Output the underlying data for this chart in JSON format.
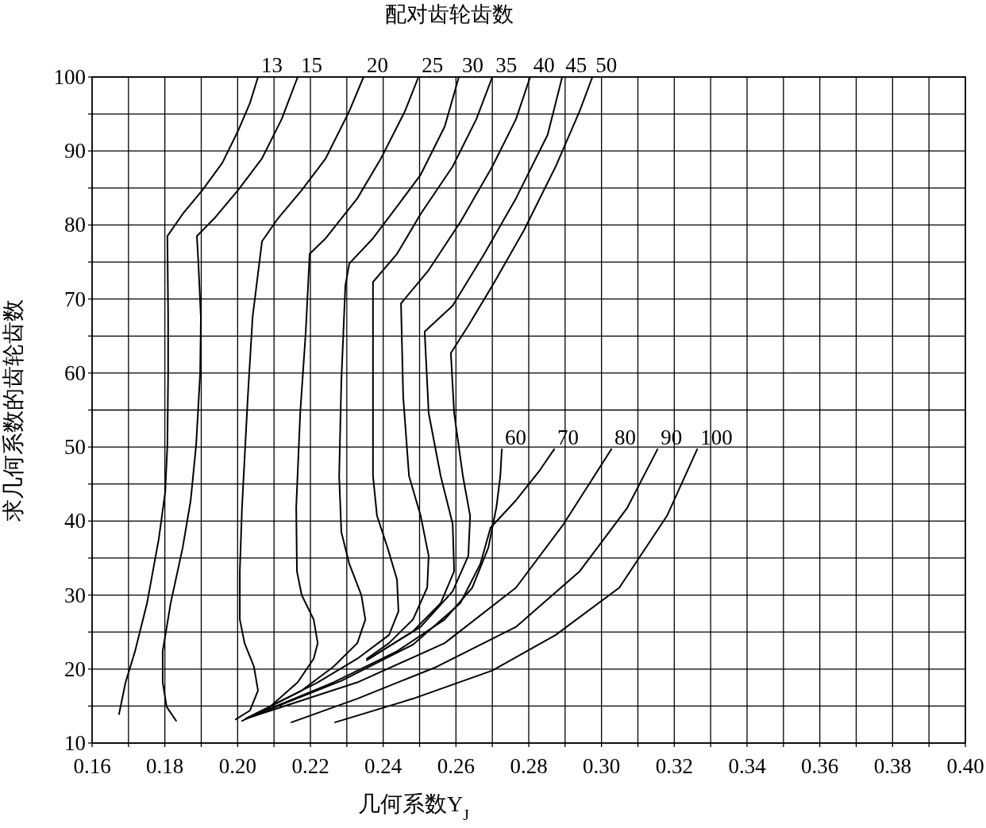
{
  "chart_data": {
    "type": "line",
    "title": "配对齿轮齿数",
    "xlabel": "几何系数Y$_{J}$",
    "ylabel": "求几何系数的齿轮齿数",
    "xlim": [
      0.16,
      0.4
    ],
    "ylim": [
      10,
      100
    ],
    "grid": true,
    "xticks": [
      {
        "value": 0.16,
        "label": "0.16"
      },
      {
        "value": 0.17,
        "label": null
      },
      {
        "value": 0.18,
        "label": "0.18"
      },
      {
        "value": 0.19,
        "label": null
      },
      {
        "value": 0.2,
        "label": "0.20"
      },
      {
        "value": 0.21,
        "label": null
      },
      {
        "value": 0.22,
        "label": "0.22"
      },
      {
        "value": 0.23,
        "label": null
      },
      {
        "value": 0.24,
        "label": "0.24"
      },
      {
        "value": 0.25,
        "label": null
      },
      {
        "value": 0.26,
        "label": "0.26"
      },
      {
        "value": 0.27,
        "label": null
      },
      {
        "value": 0.28,
        "label": "0.28"
      },
      {
        "value": 0.29,
        "label": null
      },
      {
        "value": 0.3,
        "label": "0.30"
      },
      {
        "value": 0.31,
        "label": null
      },
      {
        "value": 0.32,
        "label": "0.32"
      },
      {
        "value": 0.33,
        "label": null
      },
      {
        "value": 0.34,
        "label": "0.34"
      },
      {
        "value": 0.35,
        "label": null
      },
      {
        "value": 0.36,
        "label": "0.36"
      },
      {
        "value": 0.37,
        "label": null
      },
      {
        "value": 0.38,
        "label": "0.38"
      },
      {
        "value": 0.39,
        "label": null
      },
      {
        "value": 0.4,
        "label": "0.40"
      }
    ],
    "yticks": [
      10,
      {
        "value": 15,
        "label": null
      },
      20,
      {
        "value": 25,
        "label": null
      },
      30,
      {
        "value": 35,
        "label": null
      },
      40,
      {
        "value": 45,
        "label": null
      },
      50,
      {
        "value": 55,
        "label": null
      },
      60,
      {
        "value": 65,
        "label": null
      },
      70,
      {
        "value": 75,
        "label": null
      },
      80,
      {
        "value": 85,
        "label": null
      },
      90,
      {
        "value": 95,
        "label": null
      },
      100
    ],
    "series": [
      {
        "name": "13",
        "color": "#000000",
        "x": [
          0.1674,
          0.1692,
          0.1718,
          0.1751,
          0.1783,
          0.1801,
          0.1807,
          0.1809,
          0.1809,
          0.1807,
          0.1849,
          0.1903,
          0.1958,
          0.2001,
          0.2034,
          0.2056
        ],
        "values": [
          13.9,
          18.2,
          22.4,
          28.9,
          37.5,
          43.9,
          50.3,
          60.0,
          67.5,
          78.5,
          81.5,
          84.7,
          88.4,
          92.7,
          96.5,
          100
        ]
      },
      {
        "name": "15",
        "color": "#000000",
        "x": [
          0.1831,
          0.1805,
          0.1794,
          0.1794,
          0.1816,
          0.1849,
          0.1871,
          0.1886,
          0.1897,
          0.1899,
          0.1892,
          0.1888,
          0.1936,
          0.2001,
          0.2067,
          0.2121,
          0.2165
        ],
        "values": [
          13.0,
          14.9,
          18.2,
          22.4,
          28.9,
          36.4,
          42.8,
          50.3,
          60.0,
          67.5,
          75.0,
          78.5,
          80.9,
          84.7,
          89.0,
          94.3,
          100
        ]
      },
      {
        "name": "20",
        "color": "#000000",
        "x": [
          0.1995,
          0.2034,
          0.2056,
          0.2045,
          0.2019,
          0.2006,
          0.2006,
          0.2012,
          0.2028,
          0.2041,
          0.2067,
          0.2111,
          0.2176,
          0.2242,
          0.2307,
          0.2346
        ],
        "values": [
          13.2,
          14.4,
          17.1,
          20.3,
          23.5,
          26.7,
          33.2,
          41.8,
          56.8,
          67.5,
          77.8,
          80.9,
          84.7,
          89.0,
          95.4,
          100
        ]
      },
      {
        "name": "25",
        "color": "#000000",
        "x": [
          0.2012,
          0.2089,
          0.2165,
          0.2209,
          0.222,
          0.2209,
          0.2176,
          0.2163,
          0.2161,
          0.2172,
          0.2187,
          0.2198,
          0.2242,
          0.2329,
          0.2394,
          0.246,
          0.2497
        ],
        "values": [
          13.0,
          14.9,
          18.2,
          21.4,
          23.5,
          26.7,
          30.0,
          33.2,
          41.8,
          54.6,
          65.4,
          76.1,
          78.2,
          83.6,
          89.0,
          95.4,
          100
        ]
      },
      {
        "name": "30",
        "color": "#000000",
        "x": [
          0.2023,
          0.2176,
          0.2263,
          0.2329,
          0.2351,
          0.234,
          0.2307,
          0.2285,
          0.2279,
          0.2285,
          0.2296,
          0.2307,
          0.2372,
          0.2438,
          0.2503,
          0.2569,
          0.2608
        ],
        "values": [
          13.3,
          17.1,
          20.3,
          23.5,
          26.7,
          30.0,
          34.2,
          38.5,
          46.1,
          58.9,
          71.8,
          74.8,
          78.2,
          82.5,
          86.8,
          93.3,
          100
        ]
      },
      {
        "name": "35",
        "color": "#000000",
        "x": [
          0.2023,
          0.222,
          0.2329,
          0.2416,
          0.2442,
          0.2438,
          0.2412,
          0.2383,
          0.2372,
          0.2372,
          0.2372,
          0.2438,
          0.2503,
          0.2591,
          0.2656,
          0.27
        ],
        "values": [
          13.3,
          18.2,
          21.4,
          24.6,
          27.8,
          32.1,
          36.4,
          40.7,
          46.1,
          62.1,
          72.3,
          76.1,
          81.5,
          87.9,
          94.3,
          100
        ]
      },
      {
        "name": "40",
        "color": "#000000",
        "x": [
          0.2355,
          0.2416,
          0.2482,
          0.2521,
          0.2525,
          0.2503,
          0.2471,
          0.2455,
          0.2449,
          0.2525,
          0.2612,
          0.27,
          0.2765,
          0.2804
        ],
        "values": [
          21.4,
          23.5,
          26.7,
          31.0,
          35.3,
          40.7,
          46.1,
          56.8,
          69.4,
          73.9,
          80.4,
          87.9,
          94.3,
          100
        ]
      },
      {
        "name": "45",
        "color": "#000000",
        "x": [
          0.2355,
          0.2482,
          0.2558,
          0.2595,
          0.2591,
          0.2558,
          0.2525,
          0.2514,
          0.2591,
          0.2678,
          0.2765,
          0.2852,
          0.2892
        ],
        "values": [
          21.2,
          25.1,
          28.9,
          33.2,
          39.6,
          46.1,
          54.6,
          65.6,
          69.1,
          76.1,
          83.6,
          92.2,
          100
        ]
      },
      {
        "name": "50",
        "color": "#000000",
        "x": [
          0.2361,
          0.2503,
          0.2591,
          0.2634,
          0.2639,
          0.2619,
          0.2595,
          0.2586,
          0.2634,
          0.27,
          0.2787,
          0.2874,
          0.294,
          0.2975
        ],
        "values": [
          21.4,
          25.7,
          30.5,
          35.3,
          40.7,
          46.1,
          54.6,
          62.7,
          66.4,
          71.8,
          79.3,
          87.9,
          95.4,
          100
        ]
      },
      {
        "name": "60",
        "color": "#000000",
        "x": [
          0.2023,
          0.2263,
          0.2438,
          0.2569,
          0.2645,
          0.2689,
          0.2711,
          0.2722,
          0.2726
        ],
        "values": [
          13.3,
          18.2,
          22.4,
          26.7,
          31.0,
          36.4,
          41.8,
          46.1,
          49.7
        ]
      },
      {
        "name": "70",
        "color": "#000000",
        "x": [
          0.2023,
          0.2285,
          0.2482,
          0.2612,
          0.2667,
          0.2695,
          0.2765,
          0.2831,
          0.287
        ],
        "values": [
          13.3,
          18.4,
          23.3,
          28.9,
          34.2,
          39.1,
          42.8,
          46.9,
          49.7
        ]
      },
      {
        "name": "80",
        "color": "#000000",
        "x": [
          0.2023,
          0.2329,
          0.2569,
          0.2765,
          0.2896,
          0.3027
        ],
        "values": [
          13.3,
          18.2,
          23.5,
          31.0,
          39.6,
          49.7
        ]
      },
      {
        "name": "90",
        "color": "#000000",
        "x": [
          0.2148,
          0.2329,
          0.2547,
          0.2765,
          0.294,
          0.3071,
          0.3154
        ],
        "values": [
          12.8,
          16.0,
          20.3,
          25.7,
          33.2,
          41.8,
          49.7
        ]
      },
      {
        "name": "100",
        "color": "#000000",
        "x": [
          0.2268,
          0.2482,
          0.27,
          0.2874,
          0.3049,
          0.318,
          0.3263
        ],
        "values": [
          12.8,
          16.0,
          19.8,
          24.6,
          31.0,
          40.7,
          49.7
        ]
      }
    ]
  }
}
